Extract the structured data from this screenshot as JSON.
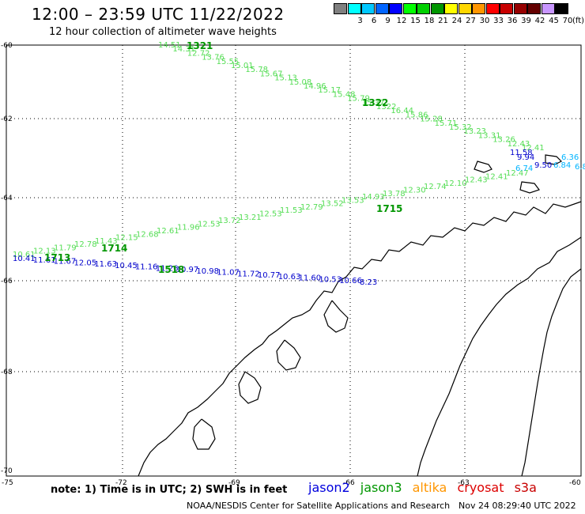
{
  "header": {
    "title": "12:00 – 23:59 UTC 11/22/2022",
    "subtitle": "12 hour collection of altimeter wave heights"
  },
  "legend": {
    "unit": "(ft)",
    "items": [
      {
        "color": "#808080",
        "label": ""
      },
      {
        "color": "#00ffff",
        "label": "3"
      },
      {
        "color": "#00c8ff",
        "label": "6"
      },
      {
        "color": "#0064ff",
        "label": "9"
      },
      {
        "color": "#0000ff",
        "label": "12"
      },
      {
        "color": "#00ff00",
        "label": "15"
      },
      {
        "color": "#00d000",
        "label": "18"
      },
      {
        "color": "#009600",
        "label": "21"
      },
      {
        "color": "#ffff00",
        "label": "24"
      },
      {
        "color": "#ffd700",
        "label": "27"
      },
      {
        "color": "#ff9600",
        "label": "30"
      },
      {
        "color": "#ff0000",
        "label": "33"
      },
      {
        "color": "#c80000",
        "label": "36"
      },
      {
        "color": "#960000",
        "label": "39"
      },
      {
        "color": "#640000",
        "label": "42"
      },
      {
        "color": "#c896ff",
        "label": "45"
      },
      {
        "color": "#000000",
        "label": "70"
      }
    ]
  },
  "axes": {
    "lat_labels": [
      "-60",
      "-62",
      "-64",
      "-66",
      "-68",
      "-70"
    ],
    "lon_labels": [
      "-75",
      "-72",
      "-69",
      "-66",
      "-63",
      "-60"
    ]
  },
  "tracks": [
    {
      "pass": "1321",
      "color": "#55dd55",
      "values": [
        "14.51",
        "14.31",
        "12.72",
        "13.76",
        "15.55",
        "15.01",
        "15.78",
        "15.67",
        "15.13",
        "15.08",
        "14.96",
        "15.17",
        "15.48",
        "15.79",
        "15.37",
        "1322",
        "16.44",
        "15.86",
        "15.28",
        "15.71",
        "15.32",
        "13.23",
        "13.31",
        "13.26",
        "12.43",
        "12.41"
      ]
    },
    {
      "pass": "1715",
      "color": "#55dd55",
      "values": [
        "10.61",
        "12.13",
        "11.79",
        "12.78",
        "11.43",
        "12.15",
        "12.68",
        "12.61",
        "11.96",
        "12.53",
        "13.72",
        "13.21",
        "12.53",
        "11.53",
        "12.79",
        "13.52",
        "13.53",
        "14.93",
        "13.78",
        "12.30",
        "12.74",
        "12.10",
        "12.43",
        "12.41",
        "12.47"
      ]
    },
    {
      "pass": "1518",
      "color": "#0000cc",
      "values": [
        "10.41",
        "11.61",
        "11.67",
        "12.05",
        "11.63",
        "10.45",
        "11.16",
        "11.26",
        "10.97",
        "10.98",
        "11.07",
        "11.72",
        "10.77",
        "10.63",
        "11.60",
        "10.53",
        "10.66",
        "8.23"
      ]
    }
  ],
  "pass_labels": [
    "1321",
    "1322",
    "1715",
    "1714",
    "1713",
    "1518"
  ],
  "east_values": [
    "11.58",
    "9.94",
    "9.50",
    "6.74",
    "6.36",
    "6.84",
    "6.8"
  ],
  "footer": {
    "note": "note: 1) Time is in UTC; 2) SWH is in feet",
    "satellites": [
      {
        "name": "jason2",
        "color": "#0000dd"
      },
      {
        "name": "jason3",
        "color": "#009600"
      },
      {
        "name": "altika",
        "color": "#ff9600"
      },
      {
        "name": "cryosat",
        "color": "#dd0000"
      },
      {
        "name": "s3a",
        "color": "#c80000"
      }
    ],
    "credit": "NOAA/NESDIS Center for Satellite Applications and Research",
    "timestamp": "Nov 24 08:29:40 UTC 2022"
  }
}
